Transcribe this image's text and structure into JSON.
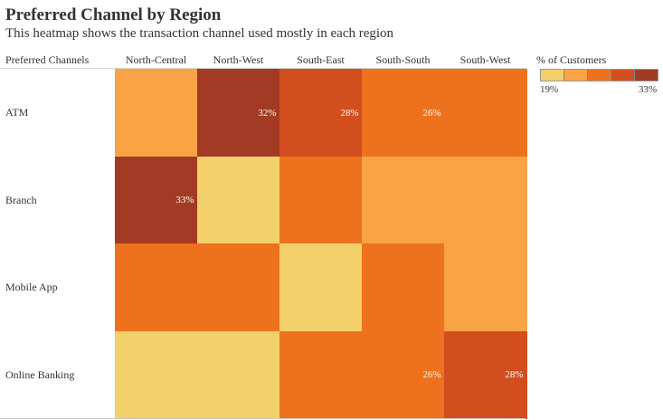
{
  "header": {
    "title": "Preferred Channel by Region",
    "subtitle": "This heatmap shows the transaction channel used mostly in each region"
  },
  "legend": {
    "title": "% of Customers",
    "min_label": "19%",
    "max_label": "33%",
    "colors": [
      "#f4d06b",
      "#f7a346",
      "#ee711d",
      "#d24e1f",
      "#a33a24"
    ]
  },
  "chart_data": {
    "type": "heatmap",
    "title": "Preferred Channel by Region",
    "subtitle": "This heatmap shows the transaction channel used mostly in each region",
    "row_header": "Preferred Channels",
    "columns": [
      "North-Central",
      "North-West",
      "South-East",
      "South-South",
      "South-West"
    ],
    "rows": [
      "ATM",
      "Branch",
      "Mobile App",
      "Online Banking"
    ],
    "color_levels": [
      [
        1,
        4,
        3,
        2,
        2
      ],
      [
        4,
        0,
        2,
        1,
        1
      ],
      [
        2,
        2,
        0,
        2,
        1
      ],
      [
        0,
        0,
        2,
        2,
        3
      ]
    ],
    "cell_labels": [
      [
        "",
        "32%",
        "28%",
        "26%",
        ""
      ],
      [
        "33%",
        "",
        "",
        "",
        ""
      ],
      [
        "",
        "",
        "",
        "",
        ""
      ],
      [
        "",
        "",
        "",
        "26%",
        "28%"
      ]
    ],
    "color_scale": {
      "min": 19,
      "max": 33,
      "unit": "% of Customers"
    }
  }
}
